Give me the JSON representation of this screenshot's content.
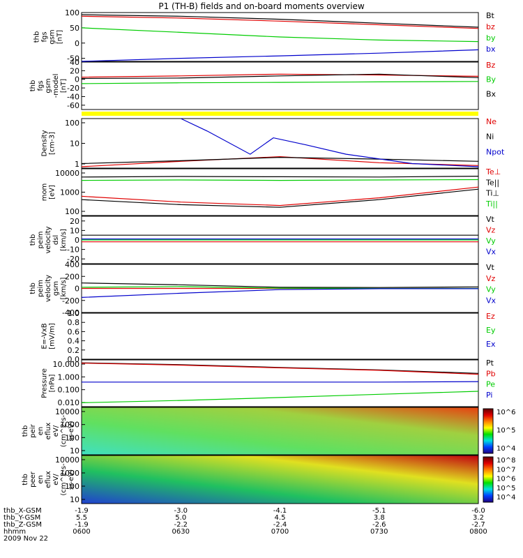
{
  "figure": {
    "title": "P1 (TH-B) fields and on-board moments overview",
    "date": "2009 Nov 22"
  },
  "time_axis": {
    "rows": [
      {
        "label": "thb_X-GSM",
        "values": [
          "-1.9",
          "-3.0",
          "-4.1",
          "-5.1",
          "-6.0"
        ]
      },
      {
        "label": "thb_Y-GSM",
        "values": [
          "5.5",
          "5.0",
          "4.5",
          "3.8",
          "3.2"
        ]
      },
      {
        "label": "thb_Z-GSM",
        "values": [
          "-1.9",
          "-2.2",
          "-2.4",
          "-2.6",
          "-2.7"
        ]
      },
      {
        "label": "hhmm",
        "values": [
          "0600",
          "0630",
          "0700",
          "0730",
          "0800"
        ]
      }
    ]
  },
  "colors": {
    "black": "#000000",
    "red": "#e00000",
    "green": "#00cc00",
    "blue": "#0000cc",
    "yellow": "#ffff00"
  },
  "chart_data": [
    {
      "type": "line",
      "ylabel": [
        "thb",
        "fgs",
        "gsm",
        "[nT]"
      ],
      "ylim": [
        -60,
        100
      ],
      "ticks": [
        "100",
        "50",
        "0",
        "-50"
      ],
      "legend": [
        {
          "text": "Bt",
          "color": "#000000"
        },
        {
          "text": "bz",
          "color": "#e00000"
        },
        {
          "text": "by",
          "color": "#00cc00"
        },
        {
          "text": "bx",
          "color": "#0000cc"
        }
      ],
      "series": [
        {
          "name": "Bt",
          "x": [
            0,
            30,
            60,
            90,
            120
          ],
          "y": [
            93,
            88,
            78,
            65,
            52
          ]
        },
        {
          "name": "bz",
          "x": [
            0,
            30,
            60,
            90,
            120
          ],
          "y": [
            88,
            82,
            72,
            60,
            48
          ]
        },
        {
          "name": "by",
          "x": [
            0,
            30,
            60,
            90,
            120
          ],
          "y": [
            50,
            35,
            20,
            10,
            5
          ]
        },
        {
          "name": "bx",
          "x": [
            0,
            30,
            60,
            90,
            120
          ],
          "y": [
            -60,
            -50,
            -42,
            -33,
            -22
          ]
        }
      ]
    },
    {
      "type": "line",
      "ylabel": [
        "thb",
        "fgs",
        "gsm",
        "-model",
        "[nT]"
      ],
      "ylim": [
        -70,
        40
      ],
      "ticks": [
        "40",
        "20",
        "0",
        "-20",
        "-40",
        "-60"
      ],
      "legend": [
        {
          "text": "Bz",
          "color": "#e00000"
        },
        {
          "text": "By",
          "color": "#00cc00"
        },
        {
          "text": "Bx",
          "color": "#000000"
        }
      ],
      "series": [
        {
          "name": "Bz",
          "x": [
            0,
            30,
            60,
            90,
            120
          ],
          "y": [
            5,
            8,
            12,
            10,
            7
          ]
        },
        {
          "name": "By",
          "x": [
            0,
            30,
            60,
            90,
            120
          ],
          "y": [
            -10,
            -8,
            -7,
            -6,
            -5
          ]
        },
        {
          "name": "Bx",
          "x": [
            0,
            30,
            60,
            90,
            120
          ],
          "y": [
            2,
            3,
            8,
            12,
            4
          ]
        }
      ]
    },
    {
      "type": "line",
      "ylabel": [
        "Density",
        "[cm-3]"
      ],
      "scale": "log",
      "ylim": [
        0.5,
        300
      ],
      "ticks": [
        "100",
        "10",
        "1"
      ],
      "legend": [
        {
          "text": "Ne",
          "color": "#e00000"
        },
        {
          "text": "Ni",
          "color": "#000000"
        },
        {
          "text": "Npot",
          "color": "#0000cc"
        }
      ],
      "series": [
        {
          "name": "Ne",
          "x": [
            0,
            30,
            60,
            90,
            120
          ],
          "y": [
            0.6,
            1.2,
            2.2,
            1.0,
            0.7
          ]
        },
        {
          "name": "Ni",
          "x": [
            0,
            30,
            60,
            90,
            120
          ],
          "y": [
            0.9,
            1.3,
            2.0,
            1.6,
            1.2
          ]
        },
        {
          "name": "Npot",
          "x": [
            30,
            38,
            51,
            58,
            68,
            80,
            100,
            120
          ],
          "y": [
            300,
            60,
            3,
            25,
            10,
            3,
            0.9,
            0.6
          ]
        }
      ]
    },
    {
      "type": "line",
      "ylabel": [
        "mom",
        "[eV]"
      ],
      "scale": "log",
      "ylim": [
        30,
        8000
      ],
      "ticks": [
        "10000",
        "1000",
        "100"
      ],
      "legend": [
        {
          "text": "Te⊥",
          "color": "#e00000"
        },
        {
          "text": "Te||",
          "color": "#000000"
        },
        {
          "text": "Ti⊥",
          "color": "#000000"
        },
        {
          "text": "Ti||",
          "color": "#00cc00"
        }
      ],
      "series": [
        {
          "name": "Te⊥",
          "x": [
            0,
            30,
            60,
            90,
            120
          ],
          "y": [
            300,
            150,
            100,
            250,
            900
          ]
        },
        {
          "name": "Te||",
          "x": [
            0,
            30,
            60,
            90,
            120
          ],
          "y": [
            200,
            110,
            80,
            200,
            700
          ]
        },
        {
          "name": "Ti⊥",
          "x": [
            0,
            30,
            60,
            90,
            120
          ],
          "y": [
            3000,
            3200,
            3100,
            3000,
            3300
          ]
        },
        {
          "name": "Ti||",
          "x": [
            0,
            30,
            60,
            90,
            120
          ],
          "y": [
            2000,
            2100,
            2000,
            2100,
            2200
          ]
        }
      ]
    },
    {
      "type": "line",
      "ylabel": [
        "thb",
        "peim",
        "velocity",
        "dsl",
        "[km/s]"
      ],
      "ylim": [
        -25,
        25
      ],
      "ticks": [
        "20",
        "10",
        "0",
        "-10",
        "-20"
      ],
      "legend": [
        {
          "text": "Vt",
          "color": "#000000"
        },
        {
          "text": "Vz",
          "color": "#e00000"
        },
        {
          "text": "Vy",
          "color": "#00cc00"
        },
        {
          "text": "Vx",
          "color": "#0000cc"
        }
      ],
      "series": [
        {
          "name": "Vt",
          "x": [
            0,
            120
          ],
          "y": [
            5,
            5
          ]
        },
        {
          "name": "Vz",
          "x": [
            0,
            120
          ],
          "y": [
            -2,
            -2
          ]
        },
        {
          "name": "Vy",
          "x": [
            0,
            120
          ],
          "y": [
            0,
            0
          ]
        },
        {
          "name": "Vx",
          "x": [
            0,
            120
          ],
          "y": [
            1,
            1
          ]
        }
      ]
    },
    {
      "type": "line",
      "ylabel": [
        "thb",
        "peim",
        "velocity",
        "gsm",
        "[km/s]"
      ],
      "ylim": [
        -400,
        400
      ],
      "ticks": [
        "400",
        "200",
        "0",
        "-200",
        "-400"
      ],
      "legend": [
        {
          "text": "Vt",
          "color": "#000000"
        },
        {
          "text": "Vz",
          "color": "#e00000"
        },
        {
          "text": "Vy",
          "color": "#00cc00"
        },
        {
          "text": "Vx",
          "color": "#0000cc"
        }
      ],
      "series": [
        {
          "name": "Vt",
          "x": [
            0,
            30,
            60,
            90,
            120
          ],
          "y": [
            90,
            60,
            20,
            15,
            25
          ]
        },
        {
          "name": "Vz",
          "x": [
            0,
            120
          ],
          "y": [
            0,
            0
          ]
        },
        {
          "name": "Vy",
          "x": [
            0,
            30,
            60,
            90,
            120
          ],
          "y": [
            20,
            30,
            5,
            0,
            0
          ]
        },
        {
          "name": "Vx",
          "x": [
            0,
            30,
            60,
            90,
            120
          ],
          "y": [
            -150,
            -80,
            -20,
            -5,
            -5
          ]
        }
      ]
    },
    {
      "type": "line",
      "ylabel": [
        "E=-VxB",
        "[mV/m]"
      ],
      "ylim": [
        0,
        1.0
      ],
      "ticks": [
        "1.0",
        "0.8",
        "0.6",
        "0.4",
        "0.2",
        "0.0"
      ],
      "legend": [
        {
          "text": "Ez",
          "color": "#e00000"
        },
        {
          "text": "Ey",
          "color": "#00cc00"
        },
        {
          "text": "Ex",
          "color": "#0000cc"
        }
      ],
      "series": []
    },
    {
      "type": "line",
      "ylabel": [
        "Pressure",
        "[nPa]"
      ],
      "scale": "log",
      "ylim": [
        0.004,
        15
      ],
      "ticks": [
        "10.000",
        "1.000",
        "0.100",
        "0.010"
      ],
      "legend": [
        {
          "text": "Pt",
          "color": "#000000"
        },
        {
          "text": "Pb",
          "color": "#e00000"
        },
        {
          "text": "Pe",
          "color": "#00cc00"
        },
        {
          "text": "Pi",
          "color": "#0000cc"
        }
      ],
      "series": [
        {
          "name": "Pt",
          "x": [
            0,
            30,
            60,
            90,
            120
          ],
          "y": [
            9,
            6.5,
            4,
            2.6,
            1.4
          ]
        },
        {
          "name": "Pb",
          "x": [
            0,
            30,
            60,
            90,
            120
          ],
          "y": [
            8.5,
            6,
            3.7,
            2.4,
            1.2
          ]
        },
        {
          "name": "Pe",
          "x": [
            0,
            30,
            60,
            90,
            120
          ],
          "y": [
            0.008,
            0.012,
            0.02,
            0.035,
            0.06
          ]
        },
        {
          "name": "Pi",
          "x": [
            0,
            30,
            60,
            90,
            120
          ],
          "y": [
            0.3,
            0.3,
            0.3,
            0.3,
            0.33
          ]
        }
      ]
    },
    {
      "type": "heatmap",
      "ylabel": [
        "thb",
        "peir",
        "en",
        "eflux",
        "eV/",
        "(cm^2-s-",
        "sr-eV)"
      ],
      "yrange": [
        8,
        20000
      ],
      "ticks": [
        "10000",
        "1000",
        "100",
        "10"
      ],
      "colorbar": {
        "ticks": [
          "10^6",
          "10^5",
          "10^4"
        ]
      }
    },
    {
      "type": "heatmap",
      "ylabel": [
        "thb",
        "peer",
        "en",
        "eflux",
        "eV/",
        "(cm^2-s-",
        "sr-eV)"
      ],
      "yrange": [
        8,
        20000
      ],
      "ticks": [
        "10000",
        "1000",
        "100",
        "10"
      ],
      "colorbar": {
        "ticks": [
          "10^8",
          "10^7",
          "10^6",
          "10^5",
          "10^4"
        ]
      }
    }
  ]
}
